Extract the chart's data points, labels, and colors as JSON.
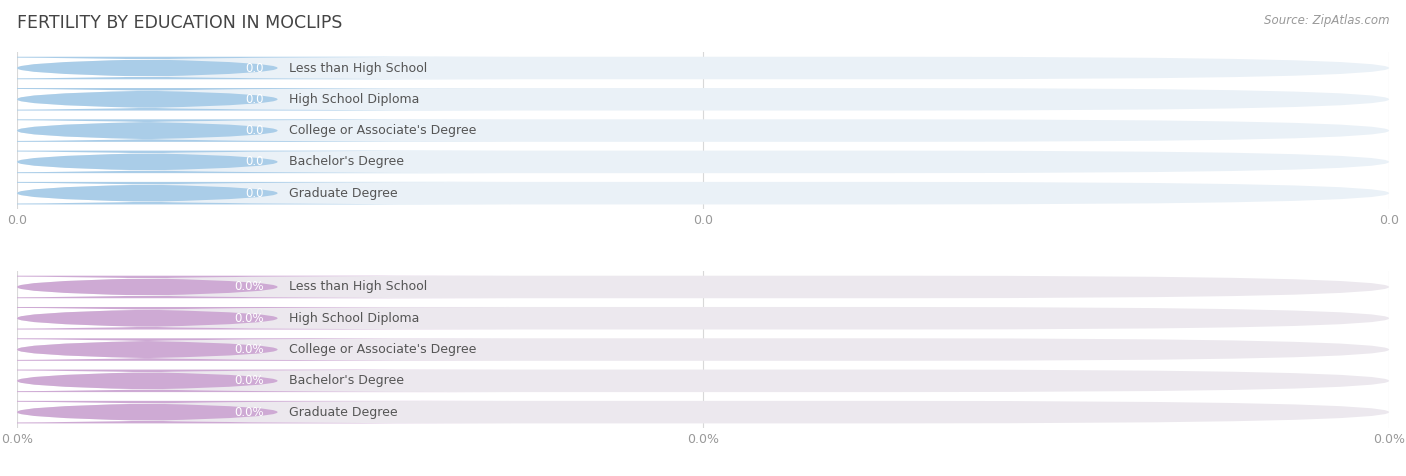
{
  "title": "FERTILITY BY EDUCATION IN MOCLIPS",
  "source_text": "Source: ZipAtlas.com",
  "categories": [
    "Less than High School",
    "High School Diploma",
    "College or Associate's Degree",
    "Bachelor's Degree",
    "Graduate Degree"
  ],
  "top_values": [
    0.0,
    0.0,
    0.0,
    0.0,
    0.0
  ],
  "bottom_values": [
    0.0,
    0.0,
    0.0,
    0.0,
    0.0
  ],
  "top_value_labels": [
    "0.0",
    "0.0",
    "0.0",
    "0.0",
    "0.0"
  ],
  "bottom_value_labels": [
    "0.0%",
    "0.0%",
    "0.0%",
    "0.0%",
    "0.0%"
  ],
  "top_bar_color": "#aacde8",
  "top_bar_bg": "#eaf1f7",
  "bottom_bar_color": "#ceaad4",
  "bottom_bar_bg": "#ece8ee",
  "title_color": "#444444",
  "label_text_color": "#555555",
  "value_text_color": "#ffffff",
  "tick_label_color": "#999999",
  "background_color": "#ffffff",
  "grid_color": "#d8d8d8",
  "source_color": "#999999",
  "top_tick_labels": [
    "0.0",
    "0.0",
    "0.0"
  ],
  "bottom_tick_labels": [
    "0.0%",
    "0.0%",
    "0.0%"
  ]
}
